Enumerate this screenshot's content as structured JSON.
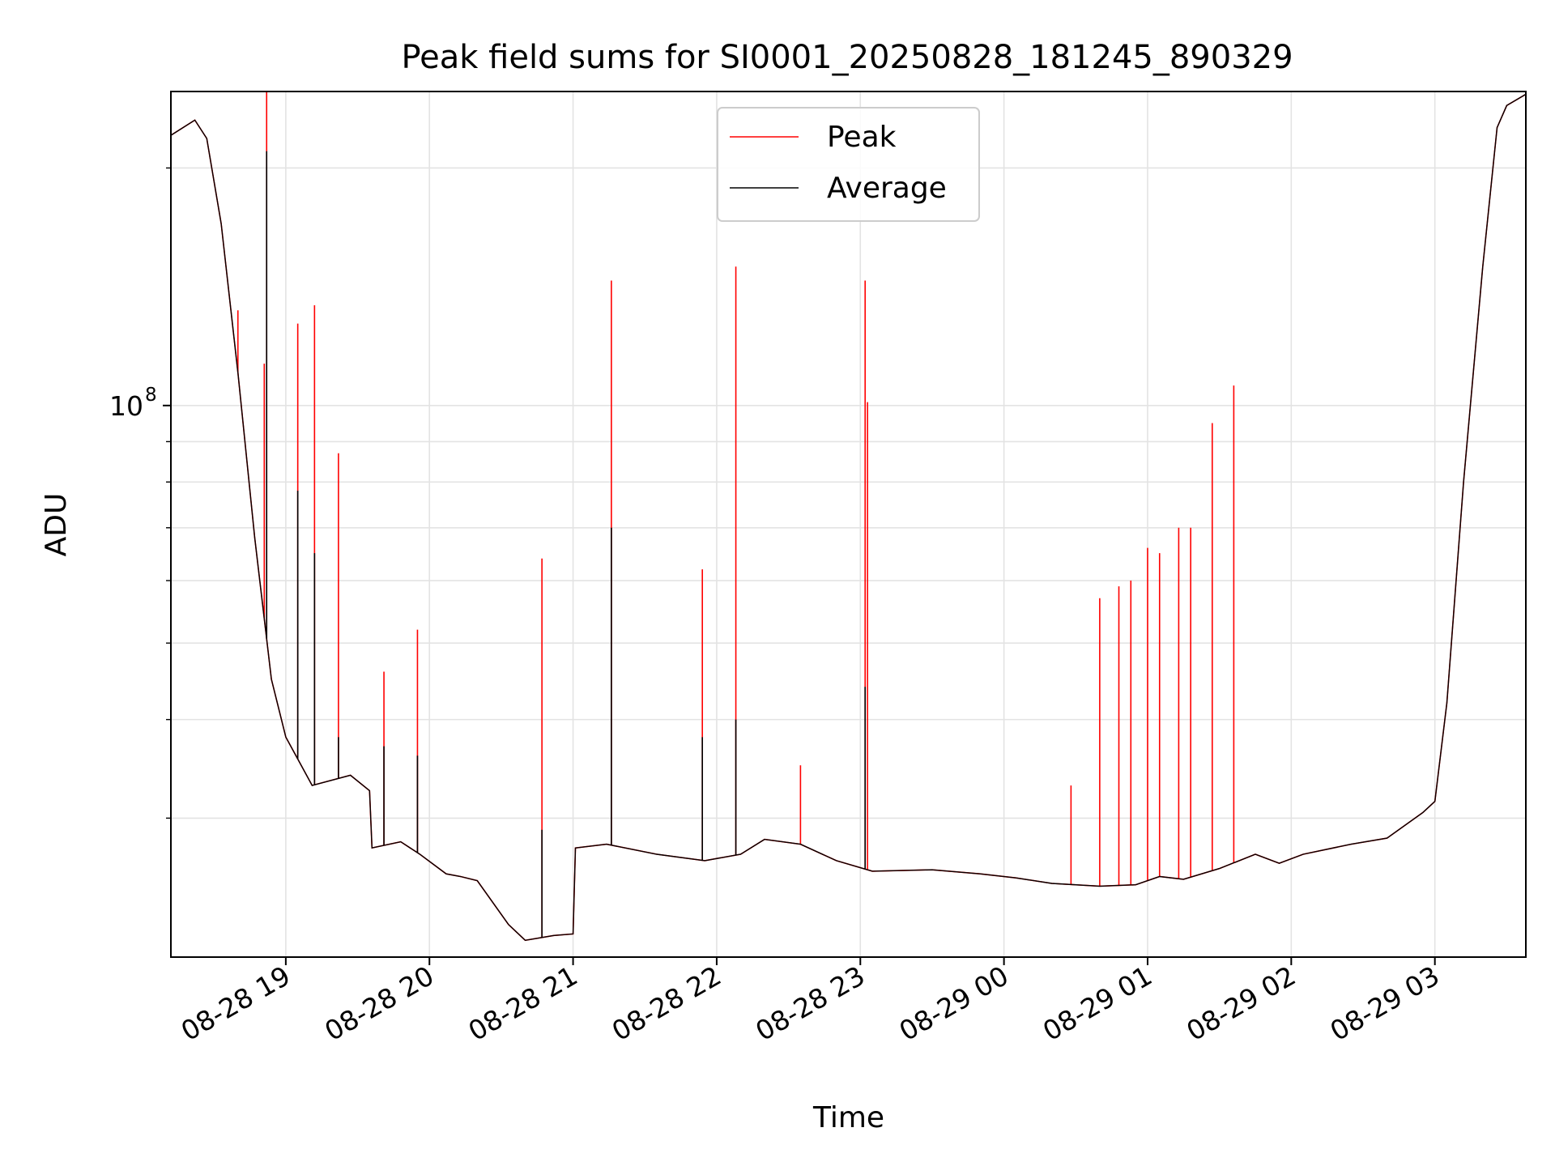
{
  "chart_data": {
    "type": "line",
    "title": "Peak field sums for SI0001_20250828_181245_890329",
    "xlabel": "Time",
    "ylabel": "ADU",
    "yscale": "log",
    "xlim": [
      "2025-08-28 18:12",
      "2025-08-29 03:38"
    ],
    "ylim": [
      20000000,
      250000000
    ],
    "x_ticks": [
      "08-28 19",
      "08-28 20",
      "08-28 21",
      "08-28 22",
      "08-28 23",
      "08-29 00",
      "08-29 01",
      "08-29 02",
      "08-29 03"
    ],
    "y_ticks": [
      {
        "value": 100000000,
        "base": "10",
        "exponent": "8"
      }
    ],
    "grid": true,
    "legend_position": "top-center",
    "series": [
      {
        "name": "Peak",
        "color": "#ff0000",
        "baseline": [
          [
            "2025-08-28 18:12",
            220000000
          ],
          [
            "2025-08-28 18:22",
            230000000
          ],
          [
            "2025-08-28 18:27",
            218000000
          ],
          [
            "2025-08-28 18:33",
            170000000
          ],
          [
            "2025-08-28 18:40",
            110000000
          ],
          [
            "2025-08-28 18:47",
            68000000
          ],
          [
            "2025-08-28 18:54",
            45000000
          ],
          [
            "2025-08-28 19:00",
            38000000
          ],
          [
            "2025-08-28 19:11",
            33000000
          ],
          [
            "2025-08-28 19:27",
            34000000
          ],
          [
            "2025-08-28 19:35",
            32500000
          ],
          [
            "2025-08-28 19:36",
            27500000
          ],
          [
            "2025-08-28 19:48",
            28000000
          ],
          [
            "2025-08-28 19:56",
            27000000
          ],
          [
            "2025-08-28 20:07",
            25500000
          ],
          [
            "2025-08-28 20:13",
            25300000
          ],
          [
            "2025-08-28 20:20",
            25000000
          ],
          [
            "2025-08-28 20:33",
            22000000
          ],
          [
            "2025-08-28 20:40",
            21000000
          ],
          [
            "2025-08-28 20:52",
            21300000
          ],
          [
            "2025-08-28 21:00",
            21400000
          ],
          [
            "2025-08-28 21:01",
            27500000
          ],
          [
            "2025-08-28 21:14",
            27800000
          ],
          [
            "2025-08-28 21:35",
            27000000
          ],
          [
            "2025-08-28 21:55",
            26500000
          ],
          [
            "2025-08-28 22:10",
            27000000
          ],
          [
            "2025-08-28 22:20",
            28200000
          ],
          [
            "2025-08-28 22:35",
            27800000
          ],
          [
            "2025-08-28 22:50",
            26500000
          ],
          [
            "2025-08-28 23:05",
            25700000
          ],
          [
            "2025-08-28 23:30",
            25800000
          ],
          [
            "2025-08-28 23:50",
            25500000
          ],
          [
            "2025-08-29 00:05",
            25200000
          ],
          [
            "2025-08-29 00:20",
            24800000
          ],
          [
            "2025-08-29 00:40",
            24600000
          ],
          [
            "2025-08-29 00:55",
            24700000
          ],
          [
            "2025-08-29 01:05",
            25300000
          ],
          [
            "2025-08-29 01:15",
            25100000
          ],
          [
            "2025-08-29 01:30",
            25900000
          ],
          [
            "2025-08-29 01:45",
            27000000
          ],
          [
            "2025-08-29 01:55",
            26300000
          ],
          [
            "2025-08-29 02:05",
            27000000
          ],
          [
            "2025-08-29 02:25",
            27800000
          ],
          [
            "2025-08-29 02:40",
            28300000
          ],
          [
            "2025-08-29 02:55",
            30500000
          ],
          [
            "2025-08-29 03:00",
            31500000
          ],
          [
            "2025-08-29 03:05",
            42000000
          ],
          [
            "2025-08-29 03:12",
            80000000
          ],
          [
            "2025-08-29 03:20",
            150000000
          ],
          [
            "2025-08-29 03:26",
            225000000
          ],
          [
            "2025-08-29 03:30",
            240000000
          ],
          [
            "2025-08-29 03:38",
            248000000
          ]
        ],
        "spikes": [
          [
            "2025-08-28 18:40",
            132000000
          ],
          [
            "2025-08-28 18:51",
            113000000
          ],
          [
            "2025-08-28 18:52",
            250000000
          ],
          [
            "2025-08-28 19:05",
            127000000
          ],
          [
            "2025-08-28 19:12",
            134000000
          ],
          [
            "2025-08-28 19:22",
            87000000
          ],
          [
            "2025-08-28 19:41",
            46000000
          ],
          [
            "2025-08-28 19:55",
            52000000
          ],
          [
            "2025-08-28 20:47",
            64000000
          ],
          [
            "2025-08-28 21:16",
            144000000
          ],
          [
            "2025-08-28 21:54",
            62000000
          ],
          [
            "2025-08-28 22:08",
            150000000
          ],
          [
            "2025-08-28 22:35",
            35000000
          ],
          [
            "2025-08-28 23:02",
            144000000
          ],
          [
            "2025-08-28 23:03",
            101000000
          ],
          [
            "2025-08-29 00:28",
            33000000
          ],
          [
            "2025-08-29 00:40",
            57000000
          ],
          [
            "2025-08-29 00:48",
            59000000
          ],
          [
            "2025-08-29 00:53",
            60000000
          ],
          [
            "2025-08-29 01:00",
            66000000
          ],
          [
            "2025-08-29 01:05",
            65000000
          ],
          [
            "2025-08-29 01:13",
            70000000
          ],
          [
            "2025-08-29 01:18",
            70000000
          ],
          [
            "2025-08-29 01:27",
            95000000
          ],
          [
            "2025-08-29 01:36",
            106000000
          ]
        ]
      },
      {
        "name": "Average",
        "color": "#000000",
        "baseline_follows": "Peak",
        "spikes": [
          [
            "2025-08-28 18:52",
            210000000
          ],
          [
            "2025-08-28 19:05",
            78000000
          ],
          [
            "2025-08-28 19:12",
            65000000
          ],
          [
            "2025-08-28 19:22",
            38000000
          ],
          [
            "2025-08-28 19:41",
            37000000
          ],
          [
            "2025-08-28 19:55",
            36000000
          ],
          [
            "2025-08-28 20:47",
            29000000
          ],
          [
            "2025-08-28 21:16",
            70000000
          ],
          [
            "2025-08-28 21:54",
            38000000
          ],
          [
            "2025-08-28 22:08",
            40000000
          ],
          [
            "2025-08-28 23:02",
            44000000
          ]
        ]
      }
    ]
  }
}
